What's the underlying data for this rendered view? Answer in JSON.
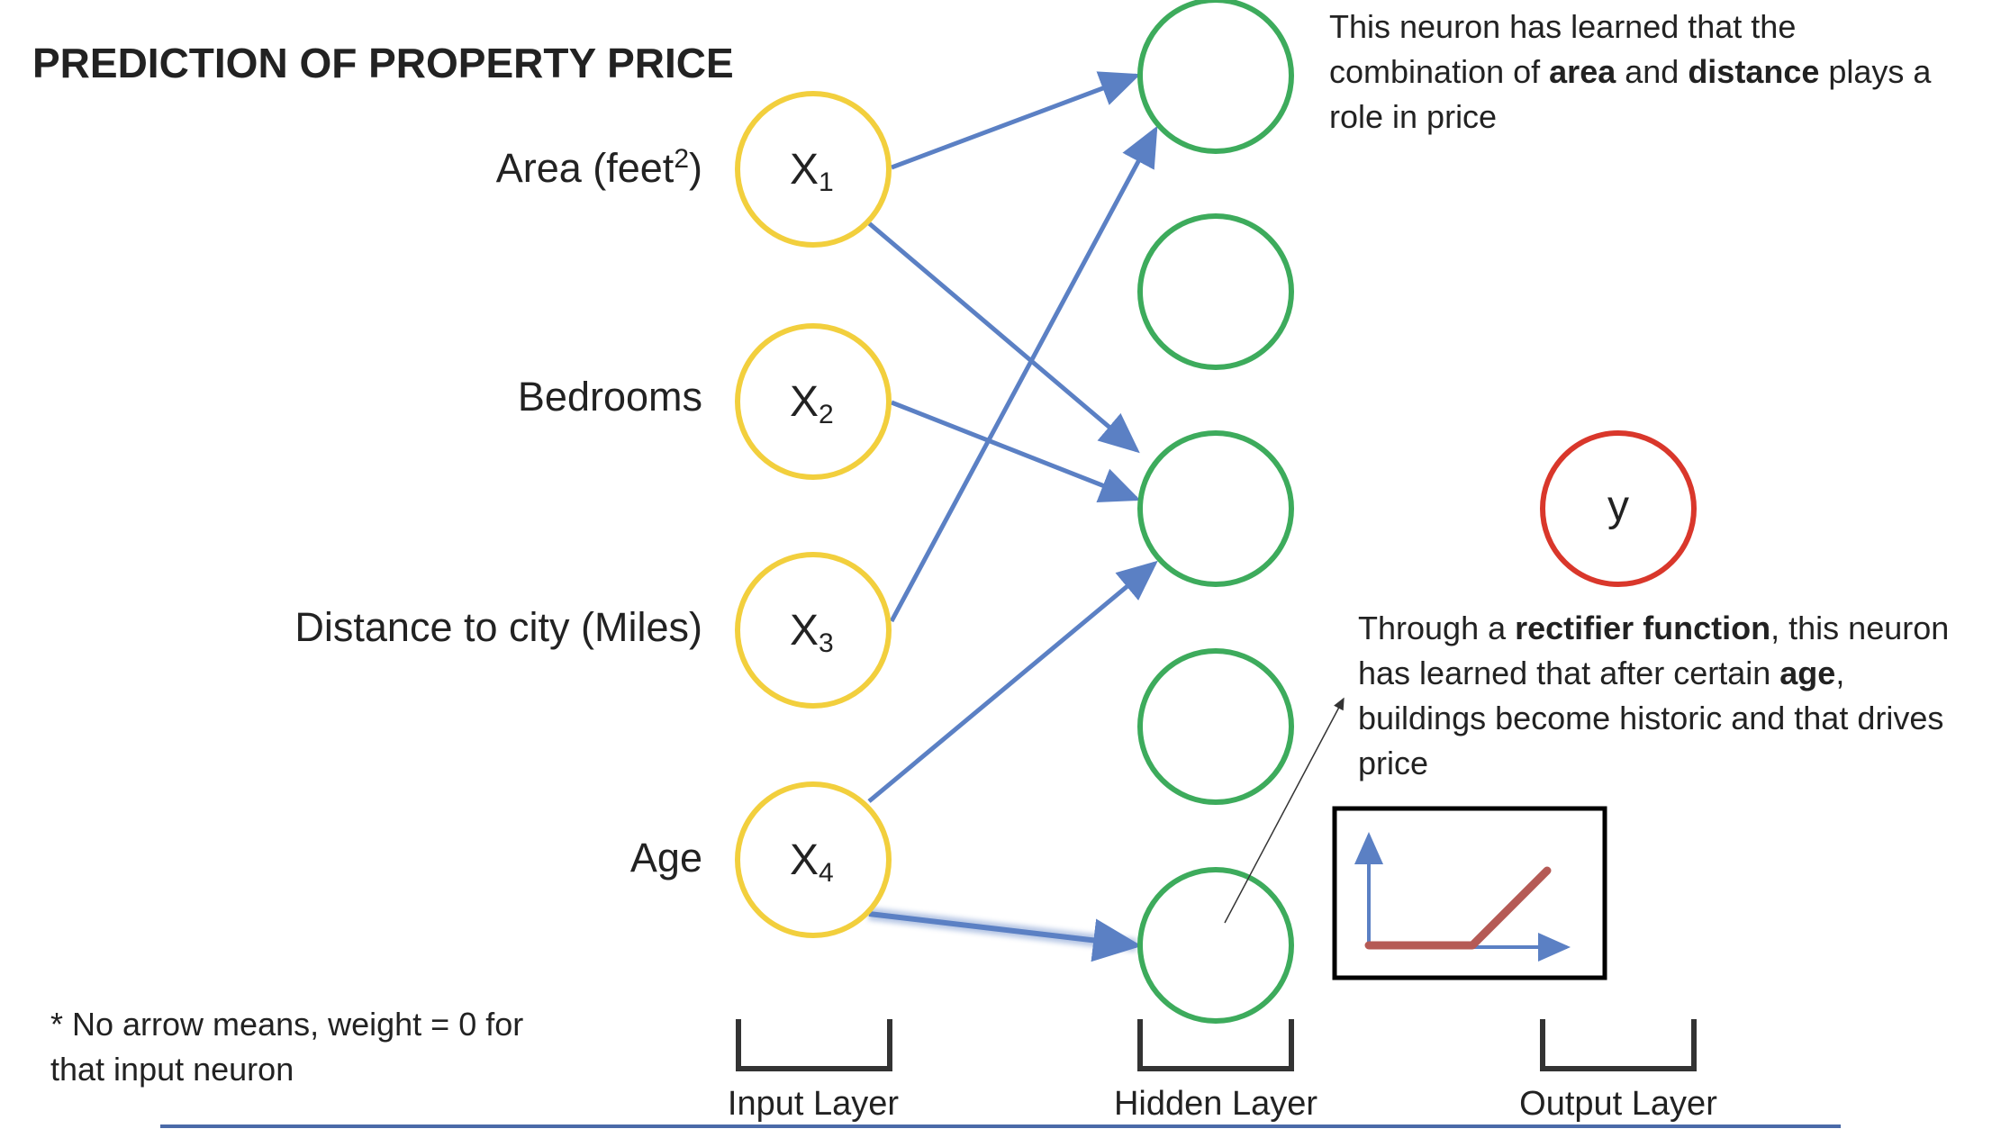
{
  "title": "PREDICTION OF PROPERTY PRICE",
  "features": [
    {
      "label": "Area (feet",
      "sup": "2",
      "tail": ")",
      "var": "X",
      "sub": "1"
    },
    {
      "label": "Bedrooms",
      "sup": "",
      "tail": "",
      "var": "X",
      "sub": "2"
    },
    {
      "label": "Distance to city (Miles)",
      "sup": "",
      "tail": "",
      "var": "X",
      "sub": "3"
    },
    {
      "label": "Age",
      "sup": "",
      "tail": "",
      "var": "X",
      "sub": "4"
    }
  ],
  "output_label": "y",
  "layers": {
    "input": "Input Layer",
    "hidden": "Hidden Layer",
    "output": "Output Layer"
  },
  "annotation_top": {
    "line1": "This neuron has learned that the",
    "line2_a": "combination of ",
    "line2_b": "area",
    "line2_c": " and ",
    "line2_d": "distance",
    "line2_e": " plays a",
    "line3": "role in price"
  },
  "annotation_bottom": {
    "line1_a": "Through a ",
    "line1_b": "rectifier function",
    "line1_c": ", this neuron",
    "line2_a": "has learned that after certain ",
    "line2_b": "age",
    "line2_c": ",",
    "line3": "buildings become historic and that drives",
    "line4": "price"
  },
  "footnote": {
    "line1": "* No arrow means, weight = 0 for",
    "line2": "that input neuron"
  },
  "colors": {
    "input_node": "#f2cf3d",
    "hidden_node": "#3dab5c",
    "output_node": "#d9372b",
    "connection": "#5b80c4",
    "relu_curve": "#b55a55",
    "axis": "#5b80c4",
    "baseline": "#4a6aa8"
  }
}
